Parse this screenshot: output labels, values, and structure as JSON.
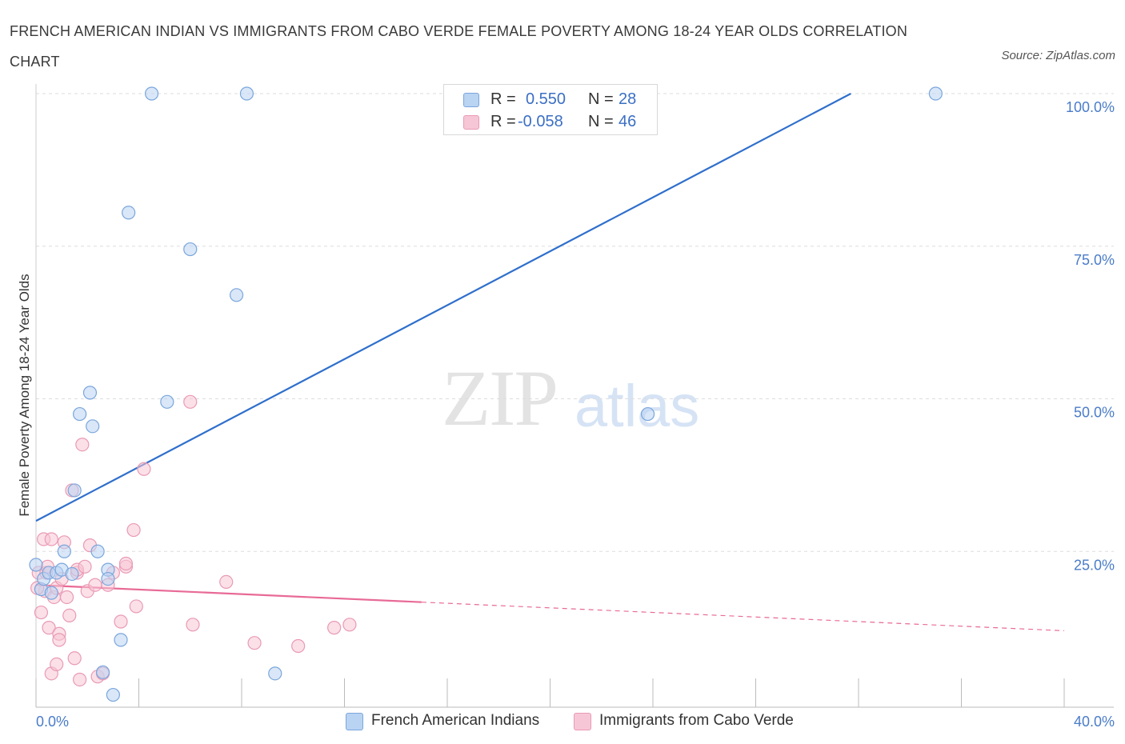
{
  "header": {
    "title": "FRENCH AMERICAN INDIAN VS IMMIGRANTS FROM CABO VERDE FEMALE POVERTY AMONG 18-24 YEAR OLDS CORRELATION CHART",
    "source": "Source: ZipAtlas.com"
  },
  "watermark": {
    "zip": "ZIP",
    "atlas": "atlas"
  },
  "legend": {
    "r_label": "R =",
    "n_label": "N =",
    "series1": {
      "r": "0.550",
      "n": "28"
    },
    "series2": {
      "r": "-0.058",
      "n": "46"
    }
  },
  "colors": {
    "blue_fill": "#b9d3f3",
    "blue_stroke": "#7aa6dc",
    "blue_line": "#2f6fcc",
    "pink_fill": "#f7c6d6",
    "pink_stroke": "#e99ab4",
    "pink_line": "#e86a96",
    "axis_text": "#4a7cc9"
  },
  "chart_data": {
    "type": "scatter",
    "title": "FRENCH AMERICAN INDIAN VS IMMIGRANTS FROM CABO VERDE FEMALE POVERTY AMONG 18-24 YEAR OLDS CORRELATION CHART",
    "xlabel": "",
    "ylabel": "Female Poverty Among 18-24 Year Olds",
    "xlim": [
      0,
      40
    ],
    "ylim": [
      0,
      100
    ],
    "x_tick_labels": [
      "0.0%",
      "40.0%"
    ],
    "y_ticks": [
      25,
      50,
      75,
      100
    ],
    "y_tick_labels": [
      "25.0%",
      "50.0%",
      "75.0%",
      "100.0%"
    ],
    "grid": true,
    "legend_position": "top-center",
    "series": [
      {
        "name": "French American Indians",
        "r": 0.55,
        "n": 28,
        "trend": {
          "x": [
            0,
            31.7
          ],
          "y": [
            30.0,
            100.0
          ]
        },
        "points": [
          {
            "x": 0.0,
            "y": 22.8
          },
          {
            "x": 0.2,
            "y": 18.8
          },
          {
            "x": 0.3,
            "y": 20.5
          },
          {
            "x": 0.5,
            "y": 21.5
          },
          {
            "x": 0.6,
            "y": 18.2
          },
          {
            "x": 0.8,
            "y": 21.5
          },
          {
            "x": 1.0,
            "y": 22.0
          },
          {
            "x": 1.1,
            "y": 25.0
          },
          {
            "x": 1.4,
            "y": 21.3
          },
          {
            "x": 1.5,
            "y": 35.0
          },
          {
            "x": 1.7,
            "y": 47.5
          },
          {
            "x": 2.1,
            "y": 51.0
          },
          {
            "x": 2.2,
            "y": 45.5
          },
          {
            "x": 2.4,
            "y": 25.0
          },
          {
            "x": 2.6,
            "y": 5.2
          },
          {
            "x": 2.8,
            "y": 22.0
          },
          {
            "x": 2.8,
            "y": 20.5
          },
          {
            "x": 3.0,
            "y": 1.5
          },
          {
            "x": 3.3,
            "y": 10.5
          },
          {
            "x": 3.6,
            "y": 80.5
          },
          {
            "x": 4.5,
            "y": 100.0
          },
          {
            "x": 5.1,
            "y": 49.5
          },
          {
            "x": 6.0,
            "y": 74.5
          },
          {
            "x": 7.8,
            "y": 67.0
          },
          {
            "x": 8.2,
            "y": 100.0
          },
          {
            "x": 9.3,
            "y": 5.0
          },
          {
            "x": 23.8,
            "y": 47.5
          },
          {
            "x": 35.0,
            "y": 100.0
          }
        ]
      },
      {
        "name": "Immigrants from Cabo Verde",
        "r": -0.058,
        "n": 46,
        "trend": {
          "x": [
            0,
            40
          ],
          "y": [
            19.5,
            12.0
          ],
          "solid_until_x": 15
        },
        "points": [
          {
            "x": 0.1,
            "y": 21.5
          },
          {
            "x": 0.2,
            "y": 15.0
          },
          {
            "x": 0.3,
            "y": 27.0
          },
          {
            "x": 0.35,
            "y": 18.5
          },
          {
            "x": 0.4,
            "y": 21.5
          },
          {
            "x": 0.5,
            "y": 12.5
          },
          {
            "x": 0.6,
            "y": 27.0
          },
          {
            "x": 0.6,
            "y": 5.0
          },
          {
            "x": 0.7,
            "y": 17.5
          },
          {
            "x": 0.8,
            "y": 6.5
          },
          {
            "x": 0.8,
            "y": 19.0
          },
          {
            "x": 0.9,
            "y": 11.5
          },
          {
            "x": 0.9,
            "y": 10.5
          },
          {
            "x": 1.0,
            "y": 20.5
          },
          {
            "x": 1.1,
            "y": 26.5
          },
          {
            "x": 1.2,
            "y": 17.5
          },
          {
            "x": 1.3,
            "y": 14.5
          },
          {
            "x": 1.4,
            "y": 35.0
          },
          {
            "x": 1.5,
            "y": 7.5
          },
          {
            "x": 1.6,
            "y": 21.5
          },
          {
            "x": 1.6,
            "y": 22.0
          },
          {
            "x": 1.7,
            "y": 4.0
          },
          {
            "x": 1.8,
            "y": 42.5
          },
          {
            "x": 1.9,
            "y": 22.5
          },
          {
            "x": 2.0,
            "y": 18.5
          },
          {
            "x": 2.1,
            "y": 26.0
          },
          {
            "x": 2.3,
            "y": 19.5
          },
          {
            "x": 2.4,
            "y": 4.5
          },
          {
            "x": 2.6,
            "y": 5.0
          },
          {
            "x": 2.8,
            "y": 19.5
          },
          {
            "x": 3.0,
            "y": 21.5
          },
          {
            "x": 3.3,
            "y": 13.5
          },
          {
            "x": 3.5,
            "y": 22.5
          },
          {
            "x": 3.5,
            "y": 23.0
          },
          {
            "x": 3.8,
            "y": 28.5
          },
          {
            "x": 3.9,
            "y": 16.0
          },
          {
            "x": 4.2,
            "y": 38.5
          },
          {
            "x": 6.0,
            "y": 49.5
          },
          {
            "x": 6.1,
            "y": 13.0
          },
          {
            "x": 7.4,
            "y": 20.0
          },
          {
            "x": 8.5,
            "y": 10.0
          },
          {
            "x": 10.2,
            "y": 9.5
          },
          {
            "x": 11.6,
            "y": 12.5
          },
          {
            "x": 12.2,
            "y": 13.0
          },
          {
            "x": 0.05,
            "y": 19.0
          },
          {
            "x": 0.45,
            "y": 22.5
          }
        ]
      }
    ]
  }
}
